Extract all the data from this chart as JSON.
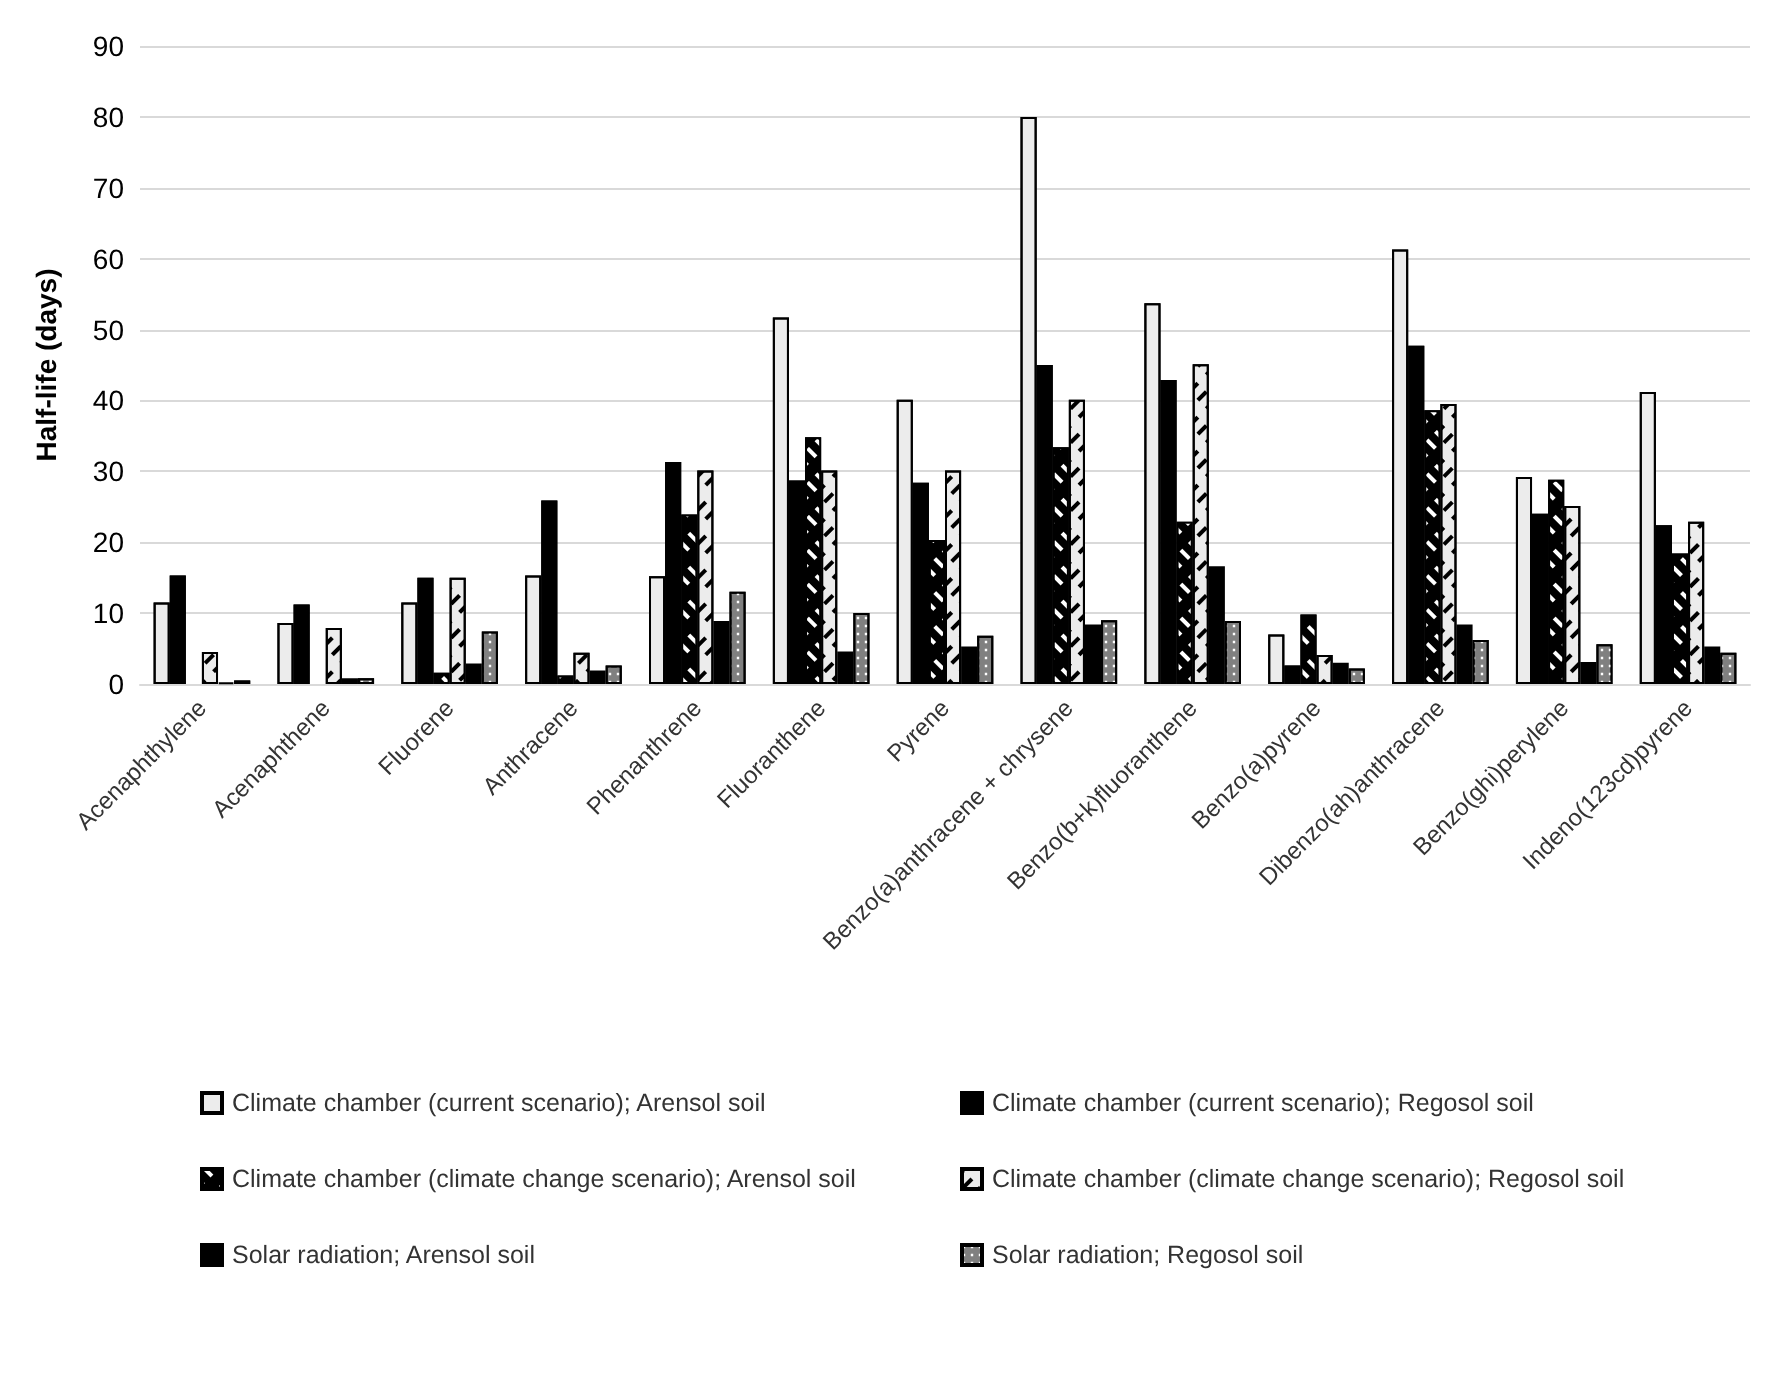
{
  "chart_data": {
    "type": "bar",
    "ylabel": "Half-life (days)",
    "categories": [
      "Acenaphthylene",
      "Acenaphthene",
      "Fluorene",
      "Anthracene",
      "Phenanthrene",
      "Fluoranthene",
      "Pyrene",
      "Benzo(a)anthracene + chrysene",
      "Benzo(b+k)fluoranthene",
      "Benzo(a)pyrene",
      "Dibenzo(ah)anthracene",
      "Benzo(ghi)perylene",
      "Indeno(123cd)pyrene"
    ],
    "series": [
      {
        "name": "Climate chamber (current scenario); Arensol soil",
        "color": "#ececec",
        "values": [
          11.5,
          8.6,
          11.5,
          15.3,
          15.2,
          51.7,
          40.1,
          80,
          53.7,
          7,
          61.3,
          29.2,
          41.2
        ]
      },
      {
        "name": "Climate chamber (current scenario); Regosol soil",
        "color": "#000000",
        "values": [
          15.3,
          11.2,
          15,
          25.9,
          31.3,
          28.7,
          28.4,
          45,
          42.9,
          2.6,
          47.7,
          24,
          22.4
        ]
      },
      {
        "name": "Climate chamber (climate change scenario); Arensol soil",
        "color": "#000000",
        "values": [
          null,
          null,
          1.6,
          1.2,
          23.9,
          34.8,
          20.3,
          33.4,
          22.9,
          9.8,
          38.6,
          28.8,
          18.4
        ]
      },
      {
        "name": "Climate chamber (climate change scenario); Regosol soil",
        "color": "#ececec",
        "values": [
          4.5,
          7.9,
          15,
          4.4,
          30.1,
          30.1,
          30.1,
          40.1,
          45.1,
          4.1,
          39.5,
          25.1,
          22.9
        ]
      },
      {
        "name": "Solar radiation; Arensol soil",
        "color": "#000000",
        "values": [
          0.2,
          0.8,
          2.9,
          1.9,
          8.9,
          4.6,
          5.3,
          8.4,
          16.6,
          3,
          8.4,
          3.1,
          5.3
        ]
      },
      {
        "name": "Solar radiation; Regosol soil",
        "color": "#808080",
        "values": [
          0.5,
          0.8,
          7.4,
          2.6,
          13,
          10,
          6.8,
          9,
          8.9,
          2.2,
          6.2,
          5.6,
          4.4
        ]
      }
    ],
    "ylim": [
      0,
      90
    ],
    "yticks": [
      0,
      10,
      20,
      30,
      40,
      50,
      60,
      70,
      80,
      90
    ],
    "grid": "y",
    "legend": "bottom"
  }
}
